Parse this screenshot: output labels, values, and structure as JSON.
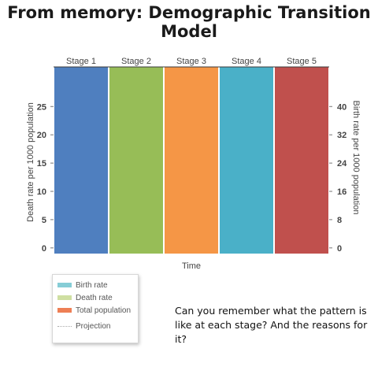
{
  "title": "From memory: Demographic Transition Model",
  "chart_data": {
    "type": "bar",
    "categories": [
      "Stage 1",
      "Stage 2",
      "Stage 3",
      "Stage 4",
      "Stage 5"
    ],
    "colors": [
      "#4f7fbf",
      "#97bd57",
      "#f59646",
      "#4ab0c8",
      "#c0504d"
    ],
    "xlabel": "Time",
    "ylabel_left": "Death rate per 1000 population",
    "ylabel_right": "Birth rate per 1000 population",
    "left_ticks": [
      0,
      5,
      10,
      15,
      20,
      25
    ],
    "right_ticks": [
      0,
      8,
      16,
      24,
      32,
      40
    ],
    "ylim_left": [
      -1,
      32
    ],
    "ylim_right": [
      -1.6,
      51.2
    ],
    "grid": false,
    "legend_position": "bottom-left"
  },
  "legend": {
    "items": [
      {
        "label": "Birth rate",
        "color": "#86cdd6",
        "style": "solid"
      },
      {
        "label": "Death rate",
        "color": "#cfdfa2",
        "style": "solid"
      },
      {
        "label": "Total population",
        "color": "#ee7f55",
        "style": "solid"
      },
      {
        "label": "Projection",
        "color": "#aaaaaa",
        "style": "dotted"
      }
    ]
  },
  "question": "Can you remember what the pattern is like at each stage? And the reasons for it?"
}
